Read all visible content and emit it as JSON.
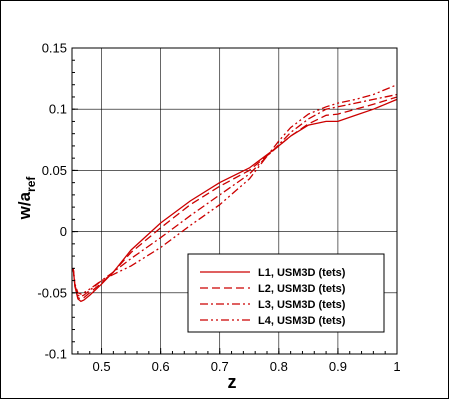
{
  "chart_data": {
    "type": "line",
    "xlabel": "z",
    "ylabel_main": "w/a",
    "ylabel_sub": "ref",
    "xlim": [
      0.45,
      1.0
    ],
    "ylim": [
      -0.1,
      0.15
    ],
    "xticks": [
      "0.5",
      "0.6",
      "0.7",
      "0.8",
      "0.9",
      "1"
    ],
    "xtick_values": [
      0.5,
      0.6,
      0.7,
      0.8,
      0.9,
      1.0
    ],
    "yticks": [
      "-0.1",
      "-0.05",
      "0",
      "0.05",
      "0.1",
      "0.15"
    ],
    "ytick_values": [
      -0.1,
      -0.05,
      0,
      0.05,
      0.1,
      0.15
    ],
    "grid": true,
    "legend_position": "bottom-right",
    "color": "#cc0000",
    "series": [
      {
        "name": "L1, USM3D (tets)",
        "dash": "solid",
        "x": [
          0.452,
          0.455,
          0.46,
          0.465,
          0.47,
          0.48,
          0.5,
          0.52,
          0.55,
          0.6,
          0.65,
          0.7,
          0.75,
          0.8,
          0.82,
          0.85,
          0.88,
          0.9,
          0.93,
          0.96,
          1.0
        ],
        "y": [
          -0.03,
          -0.045,
          -0.055,
          -0.057,
          -0.056,
          -0.052,
          -0.043,
          -0.033,
          -0.015,
          0.007,
          0.025,
          0.04,
          0.052,
          0.07,
          0.078,
          0.087,
          0.09,
          0.09,
          0.095,
          0.1,
          0.108
        ]
      },
      {
        "name": "L2, USM3D (tets)",
        "dash": "dashed",
        "x": [
          0.452,
          0.455,
          0.46,
          0.465,
          0.47,
          0.48,
          0.5,
          0.52,
          0.55,
          0.6,
          0.65,
          0.7,
          0.75,
          0.8,
          0.82,
          0.85,
          0.88,
          0.9,
          0.93,
          0.96,
          1.0
        ],
        "y": [
          -0.03,
          -0.045,
          -0.054,
          -0.055,
          -0.054,
          -0.05,
          -0.042,
          -0.033,
          -0.017,
          0.003,
          0.022,
          0.037,
          0.05,
          0.07,
          0.078,
          0.088,
          0.095,
          0.096,
          0.1,
          0.104,
          0.11
        ]
      },
      {
        "name": "L3, USM3D (tets)",
        "dash": "dashdot",
        "x": [
          0.452,
          0.455,
          0.46,
          0.465,
          0.47,
          0.48,
          0.5,
          0.52,
          0.55,
          0.6,
          0.65,
          0.7,
          0.75,
          0.8,
          0.82,
          0.85,
          0.88,
          0.9,
          0.93,
          0.96,
          1.0
        ],
        "y": [
          -0.03,
          -0.044,
          -0.052,
          -0.053,
          -0.052,
          -0.048,
          -0.04,
          -0.033,
          -0.022,
          -0.005,
          0.013,
          0.03,
          0.047,
          0.071,
          0.081,
          0.092,
          0.1,
          0.102,
          0.105,
          0.108,
          0.112
        ]
      },
      {
        "name": "L4, USM3D (tets)",
        "dash": "dashdotdot",
        "x": [
          0.452,
          0.455,
          0.46,
          0.465,
          0.47,
          0.48,
          0.5,
          0.52,
          0.55,
          0.6,
          0.65,
          0.7,
          0.75,
          0.8,
          0.82,
          0.85,
          0.88,
          0.9,
          0.93,
          0.96,
          1.0
        ],
        "y": [
          -0.03,
          -0.043,
          -0.05,
          -0.051,
          -0.05,
          -0.047,
          -0.04,
          -0.035,
          -0.028,
          -0.013,
          0.005,
          0.022,
          0.043,
          0.074,
          0.085,
          0.096,
          0.102,
          0.105,
          0.108,
          0.112,
          0.12
        ]
      }
    ]
  }
}
